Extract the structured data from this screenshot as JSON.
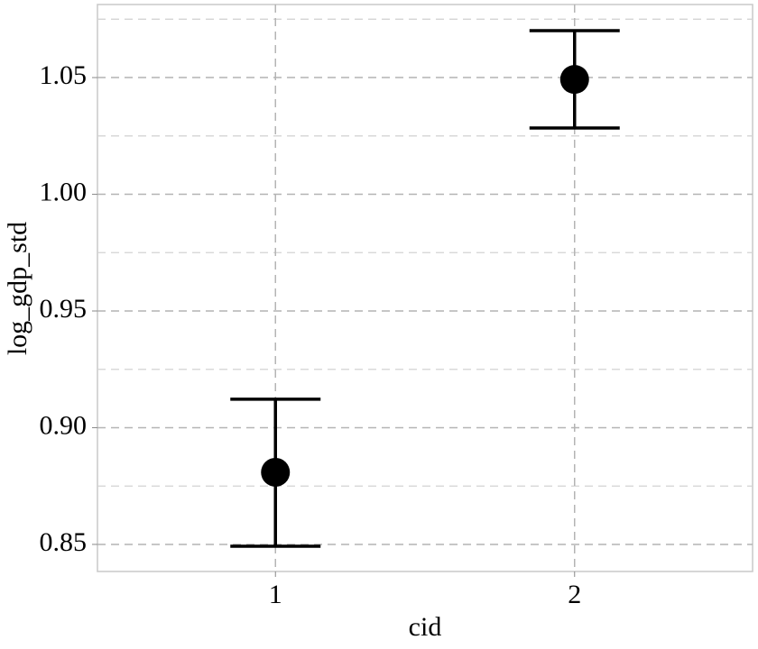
{
  "chart_data": {
    "type": "errorbar",
    "x_label": "cid",
    "y_label": "log_gdp_std",
    "categories": [
      "1",
      "2"
    ],
    "values": [
      0.8809,
      1.0492
    ],
    "lower": [
      0.8492,
      1.0284
    ],
    "upper": [
      0.9122,
      1.0701
    ],
    "color": "#000000",
    "ylim": [
      0.8384,
      1.0813
    ],
    "yticks": [
      0.85,
      {
        "value": 0.9,
        "label": "0.90"
      },
      0.95,
      {
        "value": 1.0,
        "label": "1.00"
      },
      1.05
    ],
    "yminorticks": [
      0.875,
      0.925,
      0.975,
      1.025,
      1.075
    ],
    "grid": true
  }
}
